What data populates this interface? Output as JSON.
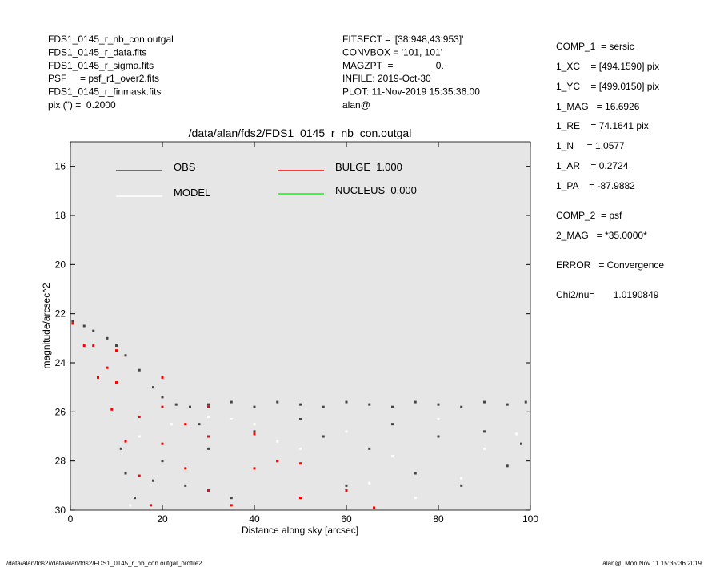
{
  "info_left": [
    "FDS1_0145_r_nb_con.outgal",
    "FDS1_0145_r_data.fits",
    "FDS1_0145_r_sigma.fits",
    "PSF     = psf_r1_over2.fits",
    "FDS1_0145_r_finmask.fits",
    "pix (\") =  0.2000"
  ],
  "info_center": [
    "FITSECT = '[38:948,43:953]'",
    "CONVBOX = '101, 101'",
    "MAGZPT  =                0.",
    "INFILE: 2019-Oct-30",
    "PLOT: 11-Nov-2019 15:35:36.00",
    "alan@"
  ],
  "info_right": [
    "COMP_1  = sersic",
    "1_XC    = [494.1590] pix",
    "1_YC    = [499.0150] pix",
    "1_MAG   = 16.6926",
    "1_RE    = 74.1641 pix",
    "1_N     = 1.0577",
    "1_AR    = 0.2724",
    "1_PA    = -87.9882",
    "COMP_2  = psf",
    "2_MAG   = *35.0000*",
    "ERROR   = Convergence",
    "Chi2/nu=       1.0190849"
  ],
  "footer_left": "/data/alan/fds2//data/alan/fds2/FDS1_0145_r_nb_con.outgal_profile2",
  "footer_right": "alan@  Mon Nov 11 15:35:36 2019",
  "chart_data": {
    "type": "scatter",
    "title": "/data/alan/fds2/FDS1_0145_r_nb_con.outgal",
    "xlabel": "Distance along sky [arcsec]",
    "ylabel": "magnitude/arcsec^2",
    "xlim": [
      0,
      100
    ],
    "ylim": [
      30,
      15
    ],
    "xticks": [
      0,
      20,
      40,
      60,
      80,
      100
    ],
    "yticks": [
      16,
      18,
      20,
      22,
      24,
      26,
      28,
      30
    ],
    "background": "#e6e6e6",
    "series": [
      {
        "name": "OBS",
        "color": "#444444",
        "x": [
          0.5,
          3,
          5,
          8,
          10,
          12,
          15,
          18,
          20,
          23,
          26,
          30,
          35,
          40,
          45,
          50,
          55,
          60,
          65,
          70,
          75,
          80,
          85,
          90,
          95,
          99,
          11,
          12,
          14,
          20,
          25,
          30,
          35,
          40,
          45,
          55,
          60,
          65,
          70,
          75,
          80,
          85,
          90,
          95,
          98,
          50,
          28,
          18
        ],
        "values": [
          22.3,
          22.5,
          22.7,
          23.0,
          23.3,
          23.7,
          24.3,
          25.0,
          25.4,
          25.7,
          25.8,
          25.7,
          25.6,
          25.8,
          25.6,
          25.7,
          25.8,
          25.6,
          25.7,
          25.8,
          25.6,
          25.7,
          25.8,
          25.6,
          25.7,
          25.6,
          27.5,
          28.5,
          29.5,
          28,
          29,
          27.5,
          29.5,
          26.8,
          28,
          27,
          29,
          27.5,
          26.5,
          28.5,
          27,
          29,
          26.8,
          28.2,
          27.3,
          26.3,
          26.5,
          28.8
        ]
      },
      {
        "name": "MODEL",
        "color": "#ffffff",
        "x": [
          15,
          22,
          30,
          40,
          50,
          60,
          70,
          80,
          90,
          97,
          85,
          75,
          65,
          45,
          35,
          13
        ],
        "values": [
          27,
          26.5,
          26.2,
          26.5,
          27.5,
          26.8,
          27.8,
          26.3,
          27.5,
          26.9,
          28.7,
          29.5,
          28.9,
          27.2,
          26.3,
          29.8
        ]
      },
      {
        "name": "BULGE  1.000",
        "color": "#ff0000",
        "x": [
          0.5,
          3,
          6,
          9,
          12,
          15,
          17.5,
          10,
          20,
          30,
          40,
          50,
          60,
          66,
          10,
          15,
          20,
          25,
          30,
          20,
          30,
          40,
          50,
          35,
          45,
          25,
          8,
          5
        ],
        "values": [
          22.4,
          23.3,
          24.6,
          25.9,
          27.2,
          28.6,
          29.8,
          23.5,
          24.6,
          25.8,
          26.9,
          28.1,
          29.2,
          29.9,
          24.8,
          26.2,
          27.3,
          28.3,
          29.2,
          25.8,
          27,
          28.3,
          29.5,
          29.8,
          28,
          26.5,
          24.2,
          23.3
        ]
      },
      {
        "name": "NUCLEUS  0.000",
        "color": "#00ff00",
        "x": [],
        "values": []
      }
    ]
  }
}
